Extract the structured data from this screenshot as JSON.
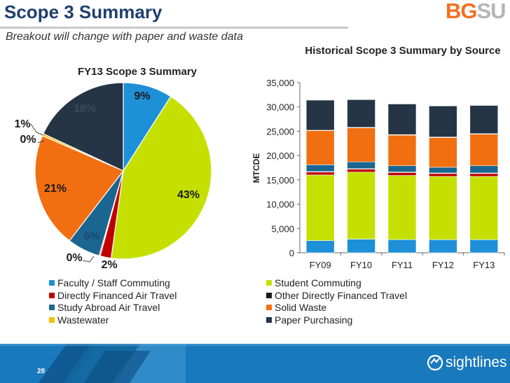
{
  "slide": {
    "title": "Scope 3 Summary",
    "subtitle": "Breakout will change with paper and waste data",
    "logo_bg": "BG",
    "logo_su": "SU",
    "page_number": "28",
    "brand": "sightlines"
  },
  "chart_data": [
    {
      "type": "pie",
      "title": "FY13 Scope 3 Summary",
      "slices": [
        {
          "label": "Faculty / Staff Commuting",
          "value": 9,
          "text": "9%",
          "color": "#1e90d8"
        },
        {
          "label": "Student Commuting",
          "value": 43,
          "text": "43%",
          "color": "#c5e000"
        },
        {
          "label": "Directly Financed Air Travel",
          "value": 2,
          "text": "2%",
          "color": "#c00000"
        },
        {
          "label": "Other Directly Financed Travel",
          "value": 0.2,
          "text": "0%",
          "color": "#1a1a1a"
        },
        {
          "label": "Study Abroad Air Travel",
          "value": 6,
          "text": "6%",
          "color": "#1a6690"
        },
        {
          "label": "Solid Waste",
          "value": 21,
          "text": "21%",
          "color": "#f26f11"
        },
        {
          "label": "Wastewater",
          "value": 0.4,
          "text": "0%",
          "color": "#f5c000"
        },
        {
          "label": "Paper Purchasing",
          "value": 18,
          "text": "18%",
          "color": "#253545"
        }
      ],
      "callout_1pct": "1%"
    },
    {
      "type": "bar",
      "stacked": true,
      "title": "Historical Scope 3 Summary by Source",
      "ylabel": "MTCDE",
      "ylim": [
        0,
        35000
      ],
      "yticks": [
        "0",
        "5,000",
        "10,000",
        "15,000",
        "20,000",
        "25,000",
        "30,000",
        "35,000"
      ],
      "categories": [
        "FY09",
        "FY10",
        "FY11",
        "FY12",
        "FY13"
      ],
      "series": [
        {
          "name": "Faculty / Staff Commuting",
          "color": "#1e90d8",
          "values": [
            2500,
            2800,
            2700,
            2700,
            2700
          ]
        },
        {
          "name": "Student Commuting",
          "color": "#c5e000",
          "values": [
            13500,
            13800,
            13200,
            13000,
            13000
          ]
        },
        {
          "name": "Directly Financed Air Travel",
          "color": "#c00000",
          "values": [
            600,
            600,
            600,
            600,
            600
          ]
        },
        {
          "name": "Other Directly Financed Travel",
          "color": "#1a1a1a",
          "values": [
            100,
            100,
            100,
            100,
            100
          ]
        },
        {
          "name": "Study Abroad Air Travel",
          "color": "#1a6690",
          "values": [
            1400,
            1400,
            1300,
            1200,
            1500
          ]
        },
        {
          "name": "Solid Waste",
          "color": "#f26f11",
          "values": [
            7000,
            7000,
            6300,
            6100,
            6500
          ]
        },
        {
          "name": "Wastewater",
          "color": "#f5c000",
          "values": [
            100,
            100,
            100,
            100,
            100
          ]
        },
        {
          "name": "Paper Purchasing",
          "color": "#253545",
          "values": [
            6200,
            5700,
            6300,
            6400,
            5800
          ]
        }
      ]
    }
  ],
  "legend": {
    "left": [
      {
        "label": "Faculty / Staff Commuting",
        "color": "#1e90d8"
      },
      {
        "label": "Directly Financed Air Travel",
        "color": "#c00000"
      },
      {
        "label": "Study Abroad Air Travel",
        "color": "#1a6690"
      },
      {
        "label": "Wastewater",
        "color": "#f5c000"
      }
    ],
    "right": [
      {
        "label": "Student Commuting",
        "color": "#c5e000"
      },
      {
        "label": "Other Directly Financed Travel",
        "color": "#1a1a1a"
      },
      {
        "label": "Solid Waste",
        "color": "#f26f11"
      },
      {
        "label": "Paper Purchasing",
        "color": "#253545"
      }
    ]
  }
}
